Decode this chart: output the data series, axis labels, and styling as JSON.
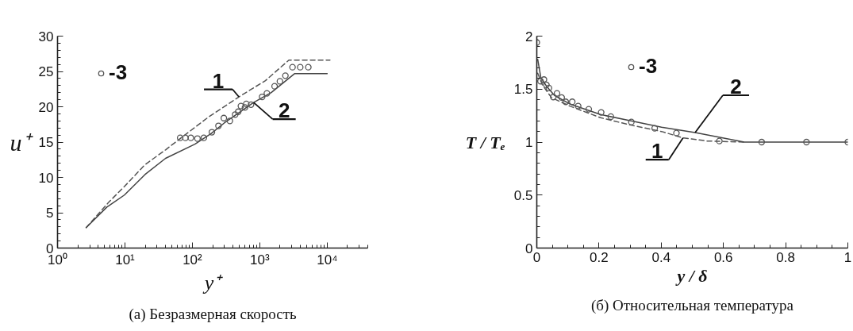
{
  "chart_data": [
    {
      "type": "line",
      "xlabel": "y⁺",
      "ylabel": "u⁺",
      "log": "x",
      "grid": false,
      "legend": "top left",
      "xlim": [
        1,
        40000
      ],
      "ylim": [
        0,
        30
      ],
      "xticks": [
        {
          "value": 1,
          "label": "10⁰"
        },
        {
          "value": 2,
          "label": null
        },
        {
          "value": 3,
          "label": null
        },
        {
          "value": 4,
          "label": null
        },
        {
          "value": 5,
          "label": null
        },
        {
          "value": 6,
          "label": null
        },
        {
          "value": 7,
          "label": null
        },
        {
          "value": 8,
          "label": null
        },
        {
          "value": 9,
          "label": null
        },
        {
          "value": 10,
          "label": "10¹"
        },
        {
          "value": 20,
          "label": null
        },
        {
          "value": 30,
          "label": null
        },
        {
          "value": 40,
          "label": null
        },
        {
          "value": 50,
          "label": null
        },
        {
          "value": 60,
          "label": null
        },
        {
          "value": 70,
          "label": null
        },
        {
          "value": 80,
          "label": null
        },
        {
          "value": 90,
          "label": null
        },
        {
          "value": 100,
          "label": "10²"
        },
        {
          "value": 200,
          "label": null
        },
        {
          "value": 300,
          "label": null
        },
        {
          "value": 400,
          "label": null
        },
        {
          "value": 500,
          "label": null
        },
        {
          "value": 600,
          "label": null
        },
        {
          "value": 700,
          "label": null
        },
        {
          "value": 800,
          "label": null
        },
        {
          "value": 900,
          "label": null
        },
        {
          "value": 1000,
          "label": "10³"
        },
        {
          "value": 2000,
          "label": null
        },
        {
          "value": 3000,
          "label": null
        },
        {
          "value": 4000,
          "label": null
        },
        {
          "value": 5000,
          "label": null
        },
        {
          "value": 6000,
          "label": null
        },
        {
          "value": 7000,
          "label": null
        },
        {
          "value": 8000,
          "label": null
        },
        {
          "value": 9000,
          "label": null
        },
        {
          "value": 10000,
          "label": "10⁴"
        },
        {
          "value": 20000,
          "label": null
        },
        {
          "value": 30000,
          "label": null
        },
        {
          "value": 40000,
          "label": null
        }
      ],
      "yticks": [
        0,
        {
          "value": 1,
          "label": null
        },
        {
          "value": 2,
          "label": null
        },
        {
          "value": 3,
          "label": null
        },
        {
          "value": 4,
          "label": null
        },
        5,
        {
          "value": 6,
          "label": null
        },
        {
          "value": 7,
          "label": null
        },
        {
          "value": 8,
          "label": null
        },
        {
          "value": 9,
          "label": null
        },
        10,
        {
          "value": 11,
          "label": null
        },
        {
          "value": 12,
          "label": null
        },
        {
          "value": 13,
          "label": null
        },
        {
          "value": 14,
          "label": null
        },
        15,
        {
          "value": 16,
          "label": null
        },
        {
          "value": 17,
          "label": null
        },
        {
          "value": 18,
          "label": null
        },
        {
          "value": 19,
          "label": null
        },
        20,
        {
          "value": 21,
          "label": null
        },
        {
          "value": 22,
          "label": null
        },
        {
          "value": 23,
          "label": null
        },
        {
          "value": 24,
          "label": null
        },
        25,
        {
          "value": 26,
          "label": null
        },
        {
          "value": 27,
          "label": null
        },
        {
          "value": 28,
          "label": null
        },
        {
          "value": 29,
          "label": null
        },
        30
      ],
      "annotations": [
        "(а) Безразмерная скорость"
      ],
      "series": [
        {
          "name": "1",
          "line_style": "dashed",
          "color": "#555555",
          "x": [
            2.66,
            5.9,
            9.8,
            19.8,
            40,
            66,
            171,
            490,
            1213,
            2700,
            11000
          ],
          "values": [
            2.9,
            6.6,
            8.7,
            11.8,
            13.9,
            15.5,
            18.5,
            21.4,
            23.7,
            26.6,
            26.6
          ]
        },
        {
          "name": "2",
          "line_style": "solid",
          "color": "#444444",
          "x": [
            2.66,
            5.4,
            9.8,
            19.8,
            40,
            109,
            189,
            297,
            811,
            1480,
            3300,
            10000
          ],
          "values": [
            2.9,
            5.8,
            7.5,
            10.4,
            12.7,
            14.7,
            16.2,
            17.7,
            20.6,
            22.0,
            24.7,
            24.7
          ]
        },
        {
          "name": "-3",
          "type": "scatter",
          "marker": "circle",
          "color": "#555555",
          "x": [
            66,
            79,
            95,
            119,
            148,
            195,
            244,
            293,
            360,
            432,
            479,
            525,
            603,
            631,
            742,
            1084,
            1276,
            1660,
            1990,
            2400,
            3060,
            3980,
            5250
          ],
          "values": [
            15.6,
            15.6,
            15.6,
            15.5,
            15.6,
            16.4,
            17.3,
            18.4,
            18.0,
            18.9,
            19.3,
            20.1,
            19.9,
            20.4,
            20.3,
            21.4,
            21.9,
            22.9,
            23.6,
            24.4,
            25.6,
            25.6,
            25.6
          ]
        }
      ]
    },
    {
      "type": "line",
      "xlabel": "y / δ",
      "ylabel": "T / Tₑ",
      "grid": false,
      "legend": "top left",
      "xlim": [
        0,
        1
      ],
      "ylim": [
        0,
        2
      ],
      "xticks": [
        0,
        {
          "value": 0.05,
          "label": null
        },
        {
          "value": 0.1,
          "label": null
        },
        {
          "value": 0.15,
          "label": null
        },
        0.2,
        {
          "value": 0.25,
          "label": null
        },
        {
          "value": 0.3,
          "label": null
        },
        {
          "value": 0.35,
          "label": null
        },
        0.4,
        {
          "value": 0.45,
          "label": null
        },
        {
          "value": 0.5,
          "label": null
        },
        {
          "value": 0.55,
          "label": null
        },
        0.6,
        {
          "value": 0.65,
          "label": null
        },
        {
          "value": 0.7,
          "label": null
        },
        {
          "value": 0.75,
          "label": null
        },
        0.8,
        {
          "value": 0.85,
          "label": null
        },
        {
          "value": 0.9,
          "label": null
        },
        {
          "value": 0.95,
          "label": null
        },
        1
      ],
      "yticks": [
        0,
        {
          "value": 0.1,
          "label": null
        },
        {
          "value": 0.2,
          "label": null
        },
        {
          "value": 0.3,
          "label": null
        },
        {
          "value": 0.4,
          "label": null
        },
        0.5,
        {
          "value": 0.6,
          "label": null
        },
        {
          "value": 0.7,
          "label": null
        },
        {
          "value": 0.8,
          "label": null
        },
        {
          "value": 0.9,
          "label": null
        },
        1,
        {
          "value": 1.1,
          "label": null
        },
        {
          "value": 1.2,
          "label": null
        },
        {
          "value": 1.3,
          "label": null
        },
        {
          "value": 1.4,
          "label": null
        },
        1.5,
        {
          "value": 1.6,
          "label": null
        },
        {
          "value": 1.7,
          "label": null
        },
        {
          "value": 1.8,
          "label": null
        },
        {
          "value": 1.9,
          "label": null
        },
        2
      ],
      "annotations": [
        "(б) Относительная температура"
      ],
      "series": [
        {
          "name": "1",
          "line_style": "dashed",
          "color": "#555555",
          "x": [
            0.003,
            0.018,
            0.047,
            0.106,
            0.205,
            0.303,
            0.401,
            0.47,
            0.548,
            0.667
          ],
          "values": [
            1.65,
            1.54,
            1.42,
            1.34,
            1.23,
            1.16,
            1.1,
            1.04,
            1.01,
            1.0
          ]
        },
        {
          "name": "2",
          "line_style": "solid",
          "color": "#444444",
          "x": [
            0.003,
            0.013,
            0.033,
            0.057,
            0.106,
            0.205,
            0.303,
            0.401,
            0.509,
            0.598,
            0.667,
            1.0
          ],
          "values": [
            1.78,
            1.61,
            1.52,
            1.44,
            1.36,
            1.26,
            1.2,
            1.14,
            1.09,
            1.04,
            1.0,
            1.0
          ]
        },
        {
          "name": "-3",
          "type": "scatter",
          "marker": "circle",
          "color": "#555555",
          "x": [
            0,
            0.012,
            0.023,
            0.031,
            0.039,
            0.053,
            0.065,
            0.08,
            0.093,
            0.114,
            0.133,
            0.167,
            0.207,
            0.238,
            0.304,
            0.379,
            0.449,
            0.587,
            0.723,
            0.867,
            1.0
          ],
          "values": [
            1.94,
            1.575,
            1.59,
            1.54,
            1.51,
            1.425,
            1.46,
            1.42,
            1.38,
            1.38,
            1.34,
            1.31,
            1.28,
            1.24,
            1.19,
            1.13,
            1.085,
            1.01,
            1.0,
            1.0,
            1.0
          ]
        }
      ]
    }
  ]
}
